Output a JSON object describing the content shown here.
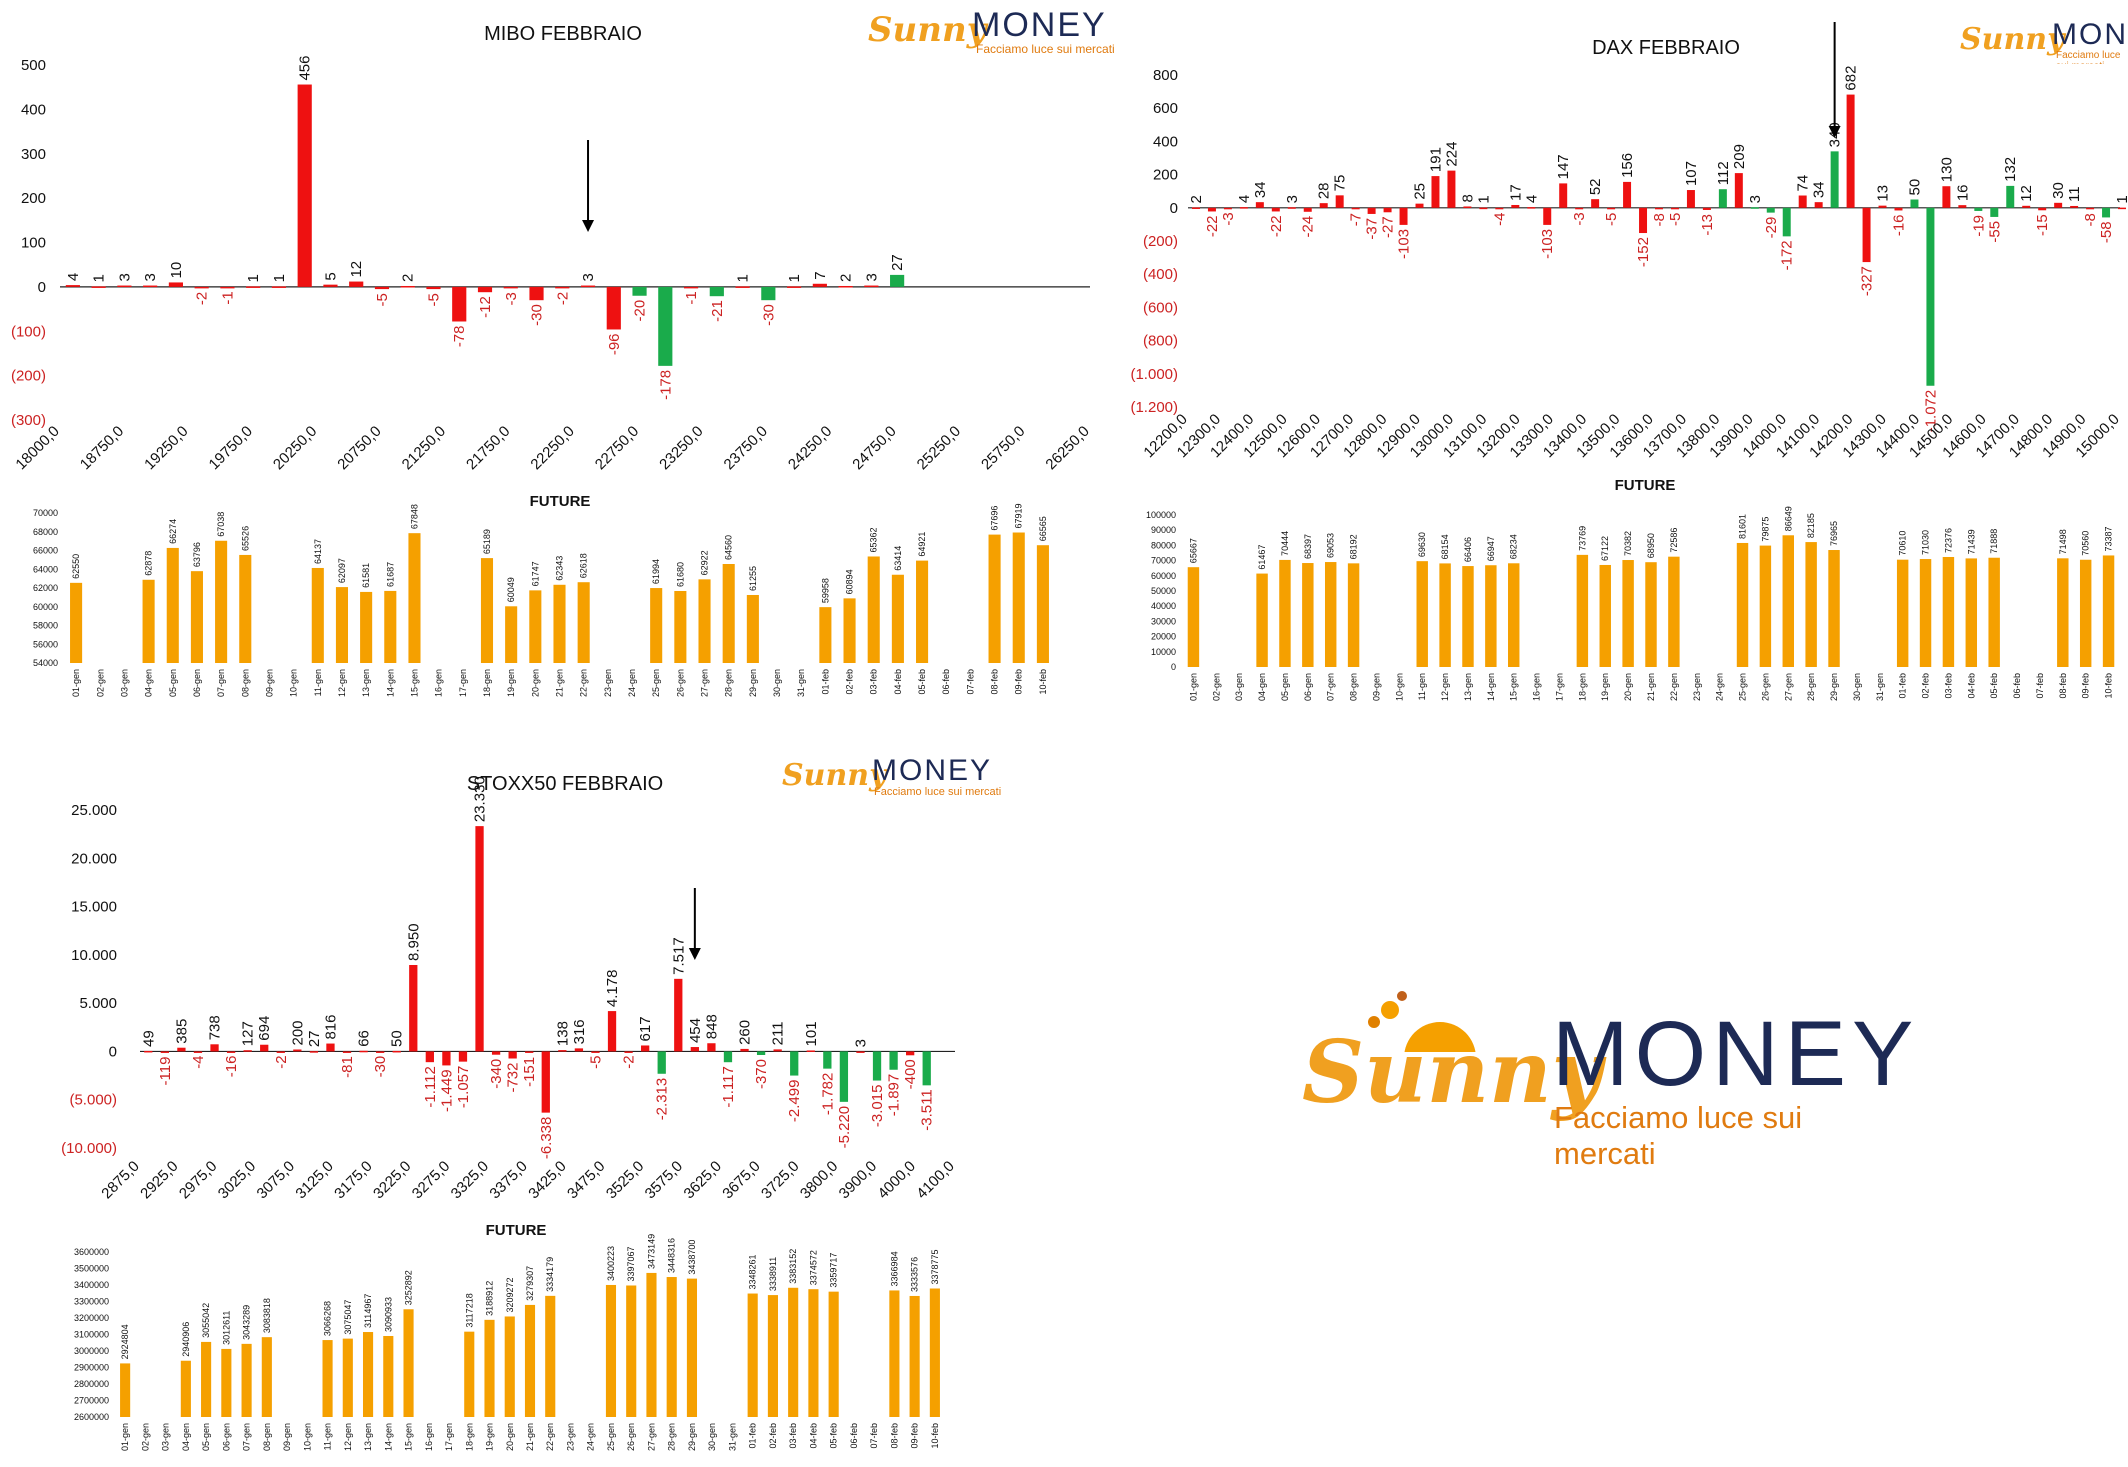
{
  "brand": {
    "script": "Sunny",
    "name": "MONEY",
    "tagline": "Facciamo luce sui mercati"
  },
  "colors": {
    "pos": "#ee1111",
    "neg": "#1aab4b",
    "future": "#f5a000",
    "neg_label": "#cc2222",
    "axis": "#222222"
  },
  "chart_data": [
    {
      "id": "mibo",
      "type": "bar",
      "title": "MIBO FEBBRAIO",
      "ylim": [
        -300,
        500
      ],
      "yticks": [
        500,
        400,
        300,
        200,
        100,
        0,
        -100,
        -200,
        -300
      ],
      "ytick_labels": [
        "500",
        "400",
        "300",
        "200",
        "100",
        "0",
        "(100)",
        "(200)",
        "(300)"
      ],
      "x_tick_labels": [
        "18000,0",
        "18750,0",
        "19250,0",
        "19750,0",
        "20250,0",
        "20750,0",
        "21250,0",
        "21750,0",
        "22250,0",
        "22750,0",
        "23250,0",
        "23750,0",
        "24250,0",
        "24750,0",
        "25250,0",
        "25750,0",
        "26250,0"
      ],
      "values": [
        4,
        1,
        3,
        3,
        10,
        -2,
        -1,
        1,
        1,
        456,
        5,
        12,
        -5,
        2,
        -5,
        -78,
        -12,
        -3,
        -30,
        -2,
        3,
        -96,
        -20,
        -178,
        -1,
        -21,
        1,
        -30,
        1,
        7,
        2,
        3,
        27
      ],
      "arrow_index": 20
    },
    {
      "id": "dax",
      "type": "bar",
      "title": "DAX FEBBRAIO",
      "ylim": [
        -1200,
        800
      ],
      "yticks": [
        800,
        600,
        400,
        200,
        0,
        -200,
        -400,
        -600,
        -800,
        -1000,
        -1200
      ],
      "ytick_labels": [
        "800",
        "600",
        "400",
        "200",
        "0",
        "(200)",
        "(400)",
        "(600)",
        "(800)",
        "(1.000)",
        "(1.200)"
      ],
      "x_tick_labels": [
        "12200,0",
        "12300,0",
        "12400,0",
        "12500,0",
        "12600,0",
        "12700,0",
        "12800,0",
        "12900,0",
        "13000,0",
        "13100,0",
        "13200,0",
        "13300,0",
        "13400,0",
        "13500,0",
        "13600,0",
        "13700,0",
        "13800,0",
        "13900,0",
        "14000,0",
        "14100,0",
        "14200,0",
        "14300,0",
        "14400,0",
        "14500,0",
        "14600,0",
        "14700,0",
        "14800,0",
        "14900,0",
        "15000,0"
      ],
      "values": [
        2,
        -22,
        -3,
        4,
        34,
        -22,
        3,
        -24,
        28,
        75,
        -7,
        -37,
        -27,
        -103,
        25,
        191,
        224,
        8,
        1,
        -4,
        17,
        4,
        -103,
        147,
        -3,
        52,
        -5,
        156,
        -152,
        -8,
        -5,
        107,
        -13,
        112,
        209,
        3,
        -29,
        -172,
        74,
        34,
        340,
        682,
        -327,
        13,
        -16,
        50,
        -1072,
        130,
        16,
        -19,
        -55,
        132,
        12,
        -15,
        30,
        11,
        -8,
        -58,
        1
      ],
      "arrow_index": 40
    },
    {
      "id": "stoxx",
      "type": "bar",
      "title": "STOXX50 FEBBRAIO",
      "ylim": [
        -10000,
        25000
      ],
      "yticks": [
        25000,
        20000,
        15000,
        10000,
        5000,
        0,
        -5000,
        -10000
      ],
      "ytick_labels": [
        "25.000",
        "20.000",
        "15.000",
        "10.000",
        "5.000",
        "0",
        "(5.000)",
        "(10.000)"
      ],
      "x_tick_labels": [
        "2875,0",
        "2925,0",
        "2975,0",
        "3025,0",
        "3075,0",
        "3125,0",
        "3175,0",
        "3225,0",
        "3275,0",
        "3325,0",
        "3375,0",
        "3425,0",
        "3475,0",
        "3525,0",
        "3575,0",
        "3625,0",
        "3675,0",
        "3725,0",
        "3800,0",
        "3900,0",
        "4000,0",
        "4100,0"
      ],
      "values": [
        49,
        -119,
        385,
        -4,
        738,
        -16,
        127,
        694,
        -2,
        200,
        27,
        816,
        -81,
        66,
        -30,
        50,
        8950,
        -1112,
        -1449,
        -1057,
        23330,
        -340,
        -732,
        -151,
        -6338,
        138,
        316,
        -5,
        4178,
        -2,
        617,
        -2313,
        7517,
        454,
        848,
        -1117,
        260,
        -370,
        211,
        -2499,
        101,
        -1782,
        -5220,
        3,
        -3015,
        -1897,
        -400,
        -3511
      ],
      "arrow_index": 33
    },
    {
      "id": "mibo_future",
      "type": "bar",
      "title": "FUTURE",
      "ylim": [
        54000,
        70000
      ],
      "yticks": [
        70000,
        68000,
        66000,
        64000,
        62000,
        60000,
        58000,
        56000,
        54000
      ],
      "ytick_labels": [
        "70000",
        "68000",
        "66000",
        "64000",
        "62000",
        "60000",
        "58000",
        "56000",
        "54000"
      ],
      "categories": [
        "01-gen",
        "02-gen",
        "03-gen",
        "04-gen",
        "05-gen",
        "06-gen",
        "07-gen",
        "08-gen",
        "09-gen",
        "10-gen",
        "11-gen",
        "12-gen",
        "13-gen",
        "14-gen",
        "15-gen",
        "16-gen",
        "17-gen",
        "18-gen",
        "19-gen",
        "20-gen",
        "21-gen",
        "22-gen",
        "23-gen",
        "24-gen",
        "25-gen",
        "26-gen",
        "27-gen",
        "28-gen",
        "29-gen",
        "30-gen",
        "31-gen",
        "01-feb",
        "02-feb",
        "03-feb",
        "04-feb",
        "05-feb",
        "06-feb",
        "07-feb",
        "08-feb",
        "09-feb",
        "10-feb"
      ],
      "values": [
        62550,
        null,
        null,
        62878,
        66274,
        63796,
        67038,
        65526,
        null,
        null,
        64137,
        62097,
        61581,
        61687,
        67848,
        null,
        null,
        65189,
        60049,
        61747,
        62343,
        62618,
        null,
        null,
        61994,
        61680,
        62922,
        64560,
        61255,
        null,
        null,
        59958,
        60894,
        65362,
        63414,
        64921,
        null,
        null,
        67696,
        67919,
        66565
      ]
    },
    {
      "id": "dax_future",
      "type": "bar",
      "title": "FUTURE",
      "ylim": [
        0,
        100000
      ],
      "yticks": [
        100000,
        90000,
        80000,
        70000,
        60000,
        50000,
        40000,
        30000,
        20000,
        10000,
        0
      ],
      "ytick_labels": [
        "100000",
        "90000",
        "80000",
        "70000",
        "60000",
        "50000",
        "40000",
        "30000",
        "20000",
        "10000",
        "0"
      ],
      "categories": [
        "01-gen",
        "02-gen",
        "03-gen",
        "04-gen",
        "05-gen",
        "06-gen",
        "07-gen",
        "08-gen",
        "09-gen",
        "10-gen",
        "11-gen",
        "12-gen",
        "13-gen",
        "14-gen",
        "15-gen",
        "16-gen",
        "17-gen",
        "18-gen",
        "19-gen",
        "20-gen",
        "21-gen",
        "22-gen",
        "23-gen",
        "24-gen",
        "25-gen",
        "26-gen",
        "27-gen",
        "28-gen",
        "29-gen",
        "30-gen",
        "31-gen",
        "01-feb",
        "02-feb",
        "03-feb",
        "04-feb",
        "05-feb",
        "06-feb",
        "07-feb",
        "08-feb",
        "09-feb",
        "10-feb"
      ],
      "values": [
        65667,
        null,
        null,
        61467,
        70444,
        68397,
        69053,
        68192,
        null,
        null,
        69630,
        68154,
        66406,
        66947,
        68234,
        null,
        null,
        73769,
        67122,
        70382,
        68950,
        72586,
        null,
        null,
        81601,
        79875,
        86649,
        82185,
        76965,
        null,
        null,
        70610,
        71030,
        72376,
        71439,
        71888,
        null,
        null,
        71498,
        70560,
        73387
      ]
    },
    {
      "id": "stoxx_future",
      "type": "bar",
      "title": "FUTURE",
      "ylim": [
        2600000,
        3600000
      ],
      "yticks": [
        3600000,
        3500000,
        3400000,
        3300000,
        3200000,
        3100000,
        3000000,
        2900000,
        2800000,
        2700000,
        2600000
      ],
      "ytick_labels": [
        "3600000",
        "3500000",
        "3400000",
        "3300000",
        "3200000",
        "3100000",
        "3000000",
        "2900000",
        "2800000",
        "2700000",
        "2600000"
      ],
      "categories": [
        "01-gen",
        "02-gen",
        "03-gen",
        "04-gen",
        "05-gen",
        "06-gen",
        "07-gen",
        "08-gen",
        "09-gen",
        "10-gen",
        "11-gen",
        "12-gen",
        "13-gen",
        "14-gen",
        "15-gen",
        "16-gen",
        "17-gen",
        "18-gen",
        "19-gen",
        "20-gen",
        "21-gen",
        "22-gen",
        "23-gen",
        "24-gen",
        "25-gen",
        "26-gen",
        "27-gen",
        "28-gen",
        "29-gen",
        "30-gen",
        "31-gen",
        "01-feb",
        "02-feb",
        "03-feb",
        "04-feb",
        "05-feb",
        "06-feb",
        "07-feb",
        "08-feb",
        "09-feb",
        "10-feb"
      ],
      "values": [
        2924804,
        null,
        null,
        2940906,
        3055042,
        3012611,
        3043289,
        3083818,
        null,
        null,
        3066268,
        3075047,
        3114967,
        3090933,
        3252892,
        null,
        null,
        3117218,
        3188912,
        3209272,
        3279307,
        3334179,
        null,
        null,
        3400223,
        3397067,
        3473149,
        3448316,
        3438700,
        null,
        null,
        3348261,
        3338911,
        3383152,
        3374572,
        3359717,
        null,
        null,
        3366984,
        3333576,
        3378775
      ]
    }
  ]
}
